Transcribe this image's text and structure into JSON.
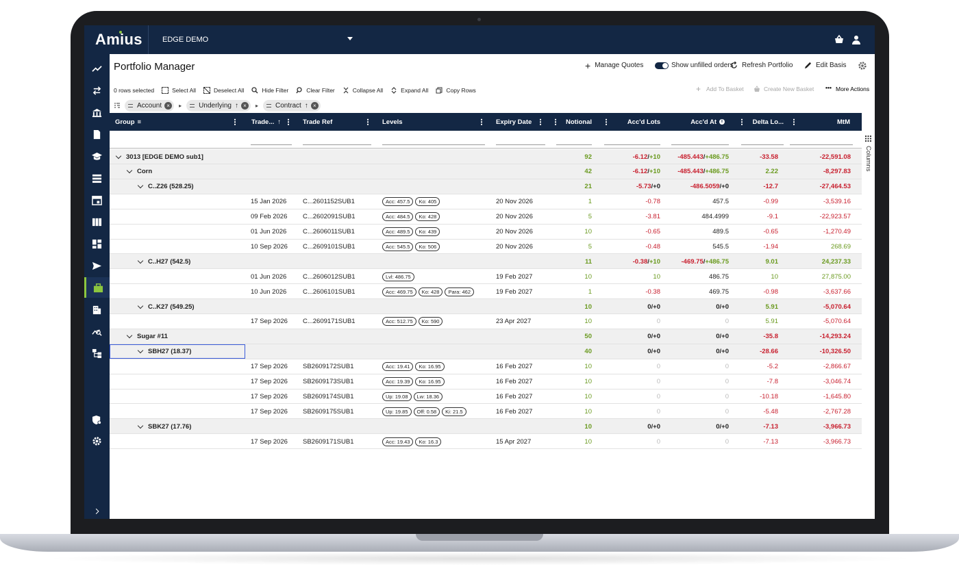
{
  "app": {
    "logo": "Amius",
    "environment": "EDGE DEMO",
    "page_title": "Portfolio Manager"
  },
  "header_actions": {
    "manage_quotes": "Manage Quotes",
    "show_unfilled": "Show unfilled orders",
    "refresh": "Refresh Portfolio",
    "edit_basis": "Edit Basis"
  },
  "toolbar": {
    "rows_selected": "0 rows selected",
    "select_all": "Select All",
    "deselect_all": "Deselect All",
    "hide_filter": "Hide Filter",
    "clear_filter": "Clear Filter",
    "collapse_all": "Collapse All",
    "expand_all": "Expand All",
    "copy_rows": "Copy Rows",
    "add_to_basket": "Add To Basket",
    "create_new_basket": "Create New Basket",
    "more_actions": "More Actions"
  },
  "grouping": {
    "account": "Account",
    "underlying": "Underlying",
    "contract": "Contract"
  },
  "columns": {
    "group": "Group",
    "trade_date": "Trade...",
    "trade_ref": "Trade Ref",
    "levels": "Levels",
    "expiry": "Expiry Date",
    "notional": "Notional",
    "accd_lots": "Acc'd Lots",
    "accd_at": "Acc'd At",
    "delta": "Delta Lo...",
    "mtm": "MtM",
    "side_panel": "Columns"
  },
  "rows": [
    {
      "type": "group",
      "level": 0,
      "label": "3013 [EDGE DEMO sub1]",
      "notional": "92",
      "lots_a": "-6.12",
      "lots_b": "+10",
      "at_a": "-485.443",
      "at_b": "+486.75",
      "delta": "-33.58",
      "mtm": "-22,591.08",
      "delta_c": "red",
      "mtm_c": "red"
    },
    {
      "type": "group",
      "level": 1,
      "label": "Corn",
      "notional": "42",
      "lots_a": "-6.12",
      "lots_b": "+10",
      "at_a": "-485.443",
      "at_b": "+486.75",
      "delta": "2.22",
      "mtm": "-8,297.83",
      "delta_c": "green",
      "mtm_c": "red"
    },
    {
      "type": "group",
      "level": 2,
      "label": "C..Z26 (528.25)",
      "notional": "21",
      "lots_a": "-5.73",
      "lots_b": "+0",
      "at_a": "-486.5059",
      "at_b": "+0",
      "delta": "-12.7",
      "mtm": "-27,464.53",
      "delta_c": "red",
      "mtm_c": "red"
    },
    {
      "type": "leaf",
      "date": "15 Jan 2026",
      "ref": "C...2601152SUB1",
      "levels": [
        "Acc: 457.5",
        "Ko: 405"
      ],
      "expiry": "20 Nov 2026",
      "notional": "1",
      "lots": "-0.78",
      "lots_c": "red",
      "at": "457.5",
      "at_c": "dark",
      "delta": "-0.99",
      "mtm": "-3,539.16",
      "delta_c": "red",
      "mtm_c": "red"
    },
    {
      "type": "leaf",
      "date": "09 Feb 2026",
      "ref": "C...2602091SUB1",
      "levels": [
        "Acc: 484.5",
        "Ko: 428"
      ],
      "expiry": "20 Nov 2026",
      "notional": "5",
      "lots": "-3.81",
      "lots_c": "red",
      "at": "484.4999",
      "at_c": "dark",
      "delta": "-9.1",
      "mtm": "-22,923.57",
      "delta_c": "red",
      "mtm_c": "red"
    },
    {
      "type": "leaf",
      "date": "01 Jun 2026",
      "ref": "C...2606011SUB1",
      "levels": [
        "Acc: 489.5",
        "Ko: 439"
      ],
      "expiry": "20 Nov 2026",
      "notional": "10",
      "lots": "-0.65",
      "lots_c": "red",
      "at": "489.5",
      "at_c": "dark",
      "delta": "-0.65",
      "mtm": "-1,270.49",
      "delta_c": "red",
      "mtm_c": "red"
    },
    {
      "type": "leaf",
      "date": "10 Sep 2026",
      "ref": "C...2609101SUB1",
      "levels": [
        "Acc: 545.5",
        "Ko: 506"
      ],
      "expiry": "20 Nov 2026",
      "notional": "5",
      "lots": "-0.48",
      "lots_c": "red",
      "at": "545.5",
      "at_c": "dark",
      "delta": "-1.94",
      "mtm": "268.69",
      "delta_c": "red",
      "mtm_c": "green"
    },
    {
      "type": "group",
      "level": 2,
      "label": "C..H27 (542.5)",
      "notional": "11",
      "lots_a": "-0.38",
      "lots_b": "+10",
      "at_a": "-469.75",
      "at_b": "+486.75",
      "delta": "9.01",
      "mtm": "24,237.33",
      "delta_c": "green",
      "mtm_c": "green"
    },
    {
      "type": "leaf",
      "date": "01 Jun 2026",
      "ref": "C...2606012SUB1",
      "levels": [
        "Lvl: 486.75"
      ],
      "expiry": "19 Feb 2027",
      "notional": "10",
      "lots": "10",
      "lots_c": "green",
      "at": "486.75",
      "at_c": "dark",
      "delta": "10",
      "mtm": "27,875.00",
      "delta_c": "green",
      "mtm_c": "green"
    },
    {
      "type": "leaf",
      "date": "10 Jun 2026",
      "ref": "C...2606101SUB1",
      "levels": [
        "Acc: 469.75",
        "Ko: 428",
        "Para: 462"
      ],
      "expiry": "19 Feb 2027",
      "notional": "1",
      "lots": "-0.38",
      "lots_c": "red",
      "at": "469.75",
      "at_c": "dark",
      "delta": "-0.98",
      "mtm": "-3,637.66",
      "delta_c": "red",
      "mtm_c": "red"
    },
    {
      "type": "group",
      "level": 2,
      "label": "C..K27 (549.25)",
      "notional": "10",
      "lots_a": "0",
      "lots_b": "+0",
      "at_a": "0",
      "at_b": "+0",
      "delta": "5.91",
      "mtm": "-5,070.64",
      "delta_c": "green",
      "mtm_c": "red"
    },
    {
      "type": "leaf",
      "date": "17 Sep 2026",
      "ref": "C...2609171SUB1",
      "levels": [
        "Acc: 512.75",
        "Ko: 590"
      ],
      "expiry": "23 Apr 2027",
      "notional": "10",
      "lots": "0",
      "lots_c": "grey",
      "at": "0",
      "at_c": "grey",
      "delta": "5.91",
      "mtm": "-5,070.64",
      "delta_c": "green",
      "mtm_c": "red"
    },
    {
      "type": "group",
      "level": 1,
      "label": "Sugar #11",
      "notional": "50",
      "lots_a": "0",
      "lots_b": "+0",
      "at_a": "0",
      "at_b": "+0",
      "delta": "-35.8",
      "mtm": "-14,293.24",
      "delta_c": "red",
      "mtm_c": "red"
    },
    {
      "type": "group",
      "level": 2,
      "label": "SBH27 (18.37)",
      "notional": "40",
      "lots_a": "0",
      "lots_b": "+0",
      "at_a": "0",
      "at_b": "+0",
      "delta": "-28.66",
      "mtm": "-10,326.50",
      "delta_c": "red",
      "mtm_c": "red",
      "selected": true
    },
    {
      "type": "leaf",
      "date": "17 Sep 2026",
      "ref": "SB2609172SUB1",
      "levels": [
        "Acc: 19.41",
        "Ko: 16.95"
      ],
      "expiry": "16 Feb 2027",
      "notional": "10",
      "lots": "0",
      "lots_c": "grey",
      "at": "0",
      "at_c": "grey",
      "delta": "-5.2",
      "mtm": "-2,866.67",
      "delta_c": "red",
      "mtm_c": "red"
    },
    {
      "type": "leaf",
      "date": "17 Sep 2026",
      "ref": "SB2609173SUB1",
      "levels": [
        "Acc: 19.39",
        "Ko: 16.95"
      ],
      "expiry": "16 Feb 2027",
      "notional": "10",
      "lots": "0",
      "lots_c": "grey",
      "at": "0",
      "at_c": "grey",
      "delta": "-7.8",
      "mtm": "-3,046.74",
      "delta_c": "red",
      "mtm_c": "red"
    },
    {
      "type": "leaf",
      "date": "17 Sep 2026",
      "ref": "SB2609174SUB1",
      "levels": [
        "Up: 19.08",
        "Lw: 18.36"
      ],
      "expiry": "16 Feb 2027",
      "notional": "10",
      "lots": "0",
      "lots_c": "grey",
      "at": "0",
      "at_c": "grey",
      "delta": "-10.18",
      "mtm": "-1,645.80",
      "delta_c": "red",
      "mtm_c": "red"
    },
    {
      "type": "leaf",
      "date": "17 Sep 2026",
      "ref": "SB2609175SUB1",
      "levels": [
        "Up: 19.85",
        "Off: 0.58",
        "Ki: 21.5"
      ],
      "expiry": "16 Feb 2027",
      "notional": "10",
      "lots": "0",
      "lots_c": "grey",
      "at": "0",
      "at_c": "grey",
      "delta": "-5.48",
      "mtm": "-2,767.28",
      "delta_c": "red",
      "mtm_c": "red"
    },
    {
      "type": "group",
      "level": 2,
      "label": "SBK27 (17.76)",
      "notional": "10",
      "lots_a": "0",
      "lots_b": "+0",
      "at_a": "0",
      "at_b": "+0",
      "delta": "-7.13",
      "mtm": "-3,966.73",
      "delta_c": "red",
      "mtm_c": "red"
    },
    {
      "type": "leaf",
      "date": "17 Sep 2026",
      "ref": "SB2609171SUB1",
      "levels": [
        "Acc: 19.43",
        "Ko: 16.3"
      ],
      "expiry": "15 Apr 2027",
      "notional": "10",
      "lots": "0",
      "lots_c": "grey",
      "at": "0",
      "at_c": "grey",
      "delta": "-7.13",
      "mtm": "-3,966.73",
      "delta_c": "red",
      "mtm_c": "red"
    }
  ],
  "icons": {
    "sidebar": [
      "trend-icon",
      "transfer-icon",
      "bank-icon",
      "document-icon",
      "graduation-icon",
      "list-icon",
      "calendar-icon",
      "columns-icon",
      "dashboard-icon",
      "send-icon",
      "briefcase-icon",
      "building-icon",
      "chart-search-icon",
      "hierarchy-icon",
      "shield-gear-icon",
      "gear-icon",
      "expand-icon"
    ]
  },
  "colors": {
    "navy": "#132744",
    "accent": "#8cc63f",
    "positive": "#6a9a1f",
    "negative": "#c8202f"
  }
}
